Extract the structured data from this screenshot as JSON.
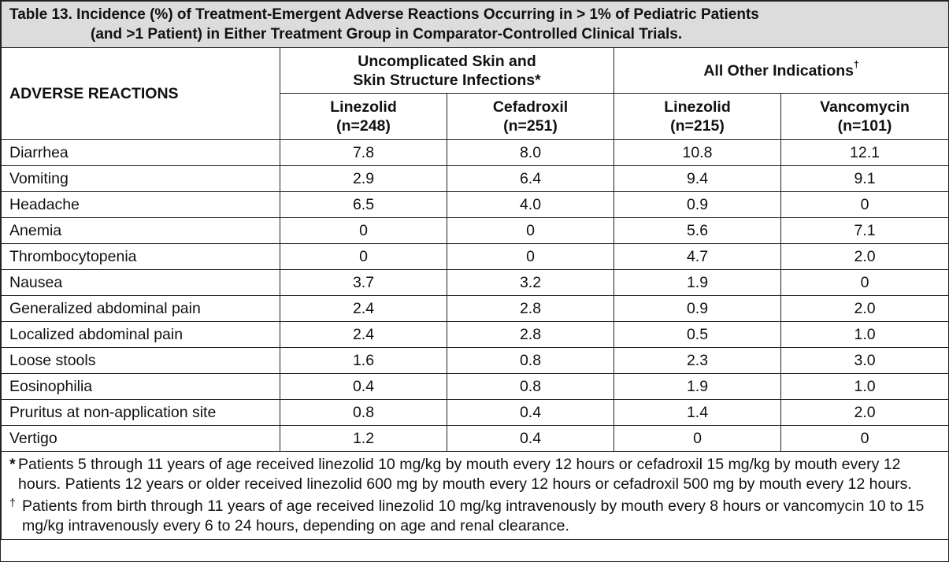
{
  "table": {
    "title_line1": "Table 13. Incidence (%) of Treatment-Emergent Adverse Reactions Occurring in > 1% of Pediatric Patients",
    "title_line2": "(and >1 Patient) in Either Treatment Group in Comparator-Controlled Clinical Trials.",
    "row_header": "ADVERSE REACTIONS",
    "group1": {
      "line1": "Uncomplicated Skin and",
      "line2": "Skin Structure Infections*"
    },
    "group2": {
      "label": "All Other Indications",
      "mark": "†"
    },
    "columns": [
      {
        "name": "Linezolid",
        "n": "(n=248)"
      },
      {
        "name": "Cefadroxil",
        "n": "(n=251)"
      },
      {
        "name": "Linezolid",
        "n": "(n=215)"
      },
      {
        "name": "Vancomycin",
        "n": "(n=101)"
      }
    ],
    "rows": [
      {
        "name": "Diarrhea",
        "values": [
          "7.8",
          "8.0",
          "10.8",
          "12.1"
        ]
      },
      {
        "name": "Vomiting",
        "values": [
          "2.9",
          "6.4",
          "9.4",
          "9.1"
        ]
      },
      {
        "name": "Headache",
        "values": [
          "6.5",
          "4.0",
          "0.9",
          "0"
        ]
      },
      {
        "name": "Anemia",
        "values": [
          "0",
          "0",
          "5.6",
          "7.1"
        ]
      },
      {
        "name": "Thrombocytopenia",
        "values": [
          "0",
          "0",
          "4.7",
          "2.0"
        ]
      },
      {
        "name": "Nausea",
        "values": [
          "3.7",
          "3.2",
          "1.9",
          "0"
        ]
      },
      {
        "name": "Generalized abdominal pain",
        "values": [
          "2.4",
          "2.8",
          "0.9",
          "2.0"
        ]
      },
      {
        "name": "Localized abdominal pain",
        "values": [
          "2.4",
          "2.8",
          "0.5",
          "1.0"
        ]
      },
      {
        "name": "Loose stools",
        "values": [
          "1.6",
          "0.8",
          "2.3",
          "3.0"
        ]
      },
      {
        "name": "Eosinophilia",
        "values": [
          "0.4",
          "0.8",
          "1.9",
          "1.0"
        ]
      },
      {
        "name": "Pruritus at non-application site",
        "values": [
          "0.8",
          "0.4",
          "1.4",
          "2.0"
        ]
      },
      {
        "name": "Vertigo",
        "values": [
          "1.2",
          "0.4",
          "0",
          "0"
        ]
      }
    ],
    "footnotes": [
      {
        "mark": "*",
        "text": "Patients 5 through 11 years of age received linezolid 10 mg/kg by mouth every 12 hours or cefadroxil 15 mg/kg by mouth every 12 hours. Patients 12 years or older received linezolid 600 mg by mouth every 12 hours or cefadroxil 500 mg by mouth every 12 hours."
      },
      {
        "mark": "†",
        "text": "Patients from birth through 11 years of age received linezolid 10 mg/kg intravenously by mouth every 8 hours or vancomycin 10 to 15 mg/kg intravenously every 6 to 24 hours, depending on age and renal clearance."
      }
    ]
  }
}
